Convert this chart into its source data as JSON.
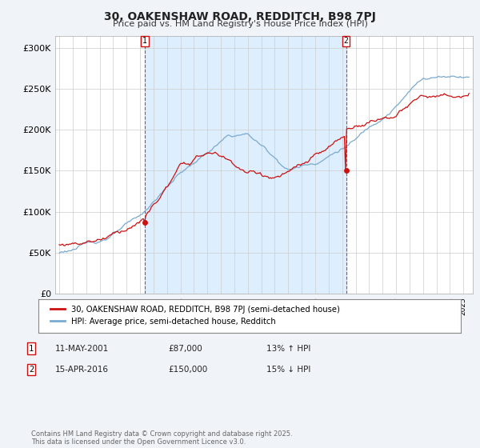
{
  "title1": "30, OAKENSHAW ROAD, REDDITCH, B98 7PJ",
  "title2": "Price paid vs. HM Land Registry's House Price Index (HPI)",
  "ylabel_ticks": [
    "£0",
    "£50K",
    "£100K",
    "£150K",
    "£200K",
    "£250K",
    "£300K"
  ],
  "ylim": [
    0,
    315000
  ],
  "xlim_start": 1994.7,
  "xlim_end": 2025.7,
  "line1_color": "#cc1111",
  "line2_color": "#7aaad0",
  "fill_color": "#ddeeff",
  "vline_color": "#cc1111",
  "ann1_x": 2001.36,
  "ann2_x": 2016.29,
  "ann1_price": 87000,
  "ann2_price": 150000,
  "ann1_date": "11-MAY-2001",
  "ann2_date": "15-APR-2016",
  "ann1_pct": "13% ↑ HPI",
  "ann2_pct": "15% ↓ HPI",
  "legend_line1": "30, OAKENSHAW ROAD, REDDITCH, B98 7PJ (semi-detached house)",
  "legend_line2": "HPI: Average price, semi-detached house, Redditch",
  "footer": "Contains HM Land Registry data © Crown copyright and database right 2025.\nThis data is licensed under the Open Government Licence v3.0.",
  "bg_color": "#f0f4f8",
  "plot_bg_color": "#ffffff"
}
